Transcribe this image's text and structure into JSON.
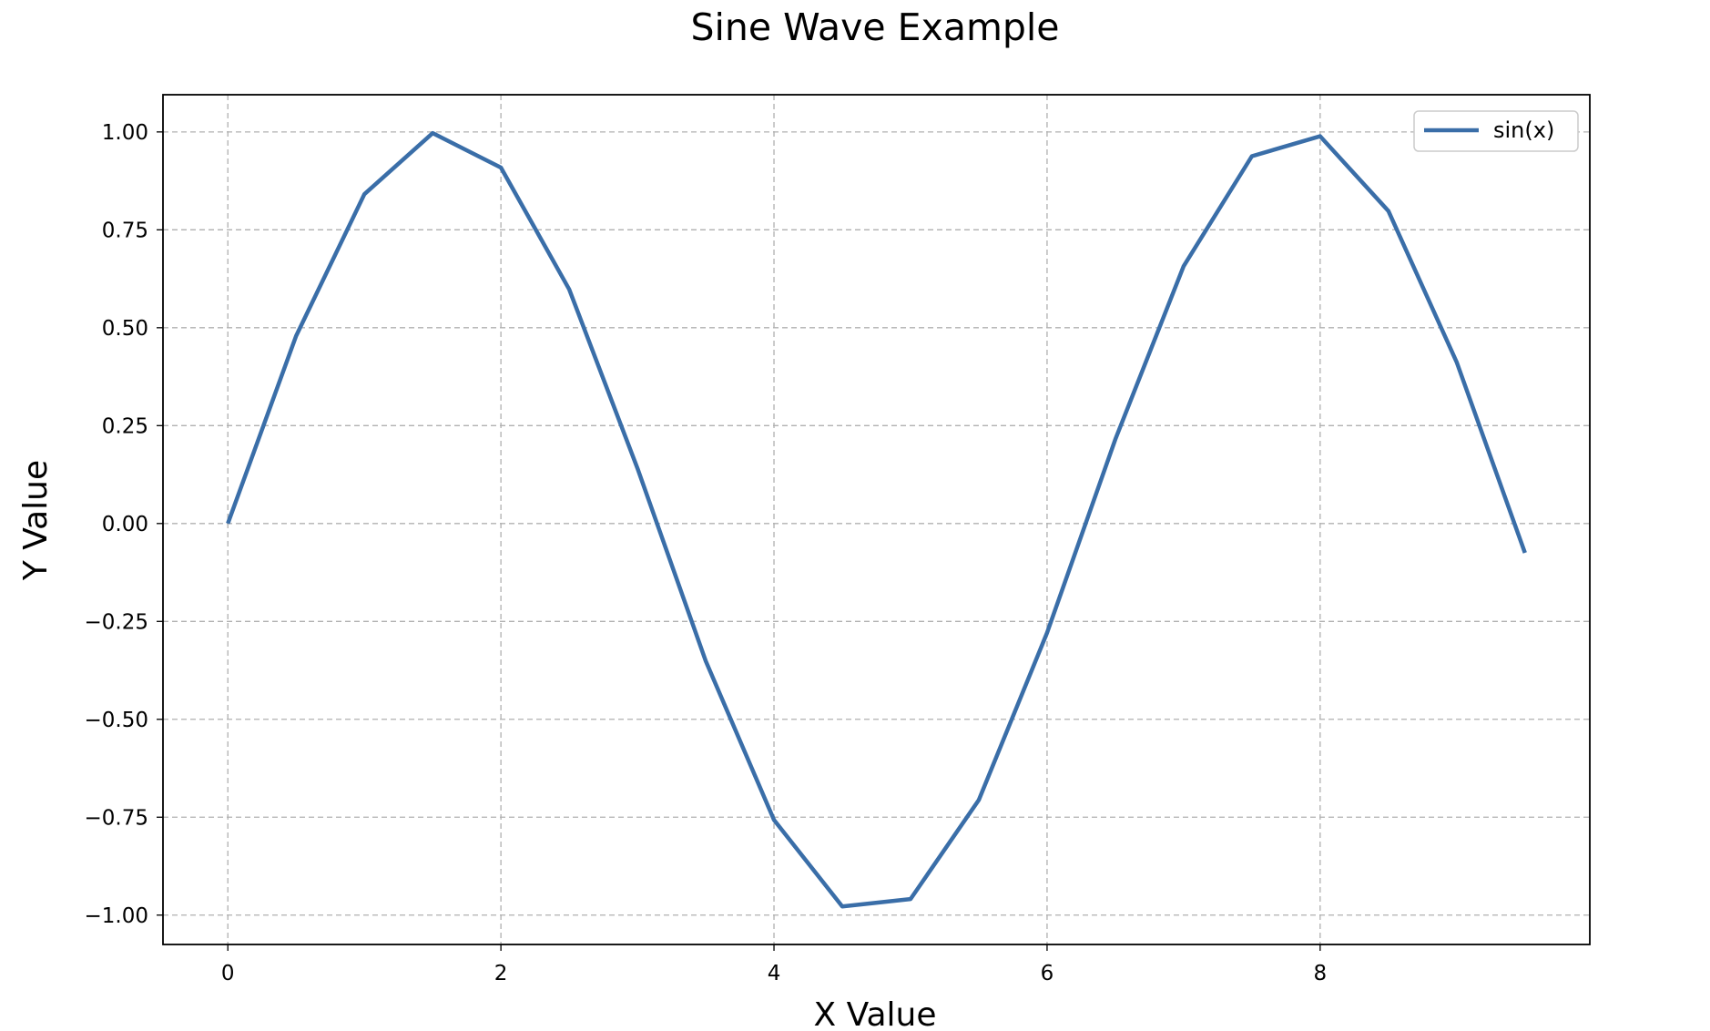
{
  "chart_data": {
    "type": "line",
    "title": "Sine Wave Example",
    "xlabel": "X Value",
    "ylabel": "Y Value",
    "xlim": [
      -0.475,
      9.975
    ],
    "ylim": [
      -1.075,
      1.095
    ],
    "grid": true,
    "legend_position": "top-right",
    "x_ticks": [
      0,
      2,
      4,
      6,
      8
    ],
    "x_tick_labels": [
      "0",
      "2",
      "4",
      "6",
      "8"
    ],
    "y_ticks": [
      1.0,
      0.75,
      0.5,
      0.25,
      0.0,
      -0.25,
      -0.5,
      -0.75,
      -1.0
    ],
    "y_tick_labels": [
      "1.00",
      "0.75",
      "0.50",
      "0.25",
      "0.00",
      "−0.25",
      "−0.50",
      "−0.75",
      "−1.00"
    ],
    "series": [
      {
        "name": "sin(x)",
        "color": "#3a6ea8",
        "x": [
          0,
          0.5,
          1,
          1.5,
          2,
          2.5,
          3,
          3.5,
          4,
          4.5,
          5,
          5.5,
          6,
          6.5,
          7,
          7.5,
          8,
          8.5,
          9,
          9.5
        ],
        "values": [
          0.0,
          0.479,
          0.841,
          0.997,
          0.909,
          0.598,
          0.141,
          -0.351,
          -0.757,
          -0.978,
          -0.959,
          -0.706,
          -0.279,
          0.215,
          0.657,
          0.938,
          0.989,
          0.798,
          0.412,
          -0.075
        ]
      }
    ]
  }
}
